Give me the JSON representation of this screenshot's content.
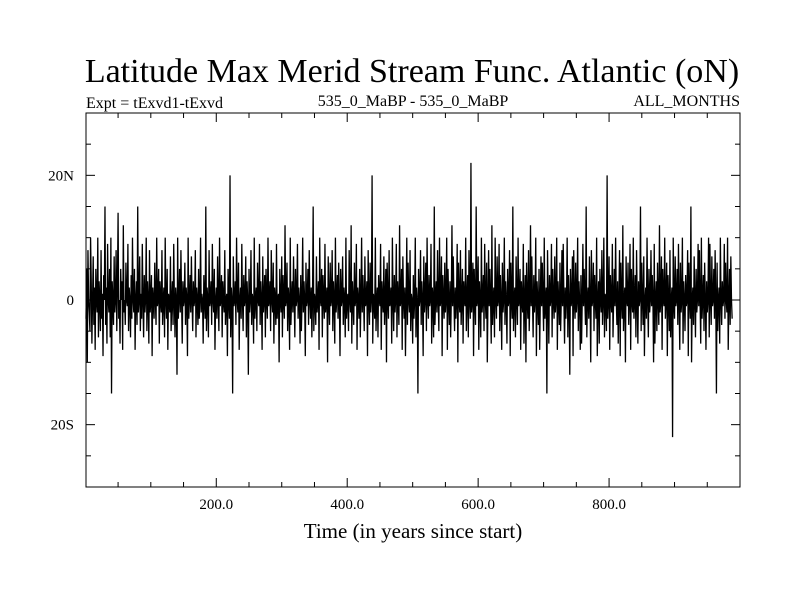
{
  "chart_data": {
    "type": "line",
    "title": "Latitude Max Merid Stream Func. Atlantic (oN)",
    "subtitle_left": "Expt = tExvd1-tExvd",
    "subtitle_center": "535_0_MaBP - 535_0_MaBP",
    "subtitle_right": "ALL_MONTHS",
    "xlabel": "Time (in years since start)",
    "ylabel": "",
    "xlim": [
      1,
      1000
    ],
    "ylim": [
      -30,
      30
    ],
    "x_ticks": [
      {
        "value": 200,
        "label": "200.0"
      },
      {
        "value": 400,
        "label": "400.0"
      },
      {
        "value": 600,
        "label": "600.0"
      },
      {
        "value": 800,
        "label": "800.0"
      }
    ],
    "y_ticks": [
      {
        "value": 20,
        "label": "20N"
      },
      {
        "value": 0,
        "label": "0"
      },
      {
        "value": -20,
        "label": "20S"
      }
    ],
    "x_minor_step": 50,
    "y_minor_step": 5,
    "series": [
      {
        "name": "Latitude Max Merid Stream Func.",
        "color": "#000000",
        "x_start": 1,
        "x_step": 1,
        "values": [
          -3,
          5,
          -10,
          8,
          0,
          -2,
          -5,
          10,
          3,
          -7,
          0,
          7,
          -4,
          2,
          -8,
          5,
          0,
          -2,
          10,
          -6,
          3,
          0,
          -5,
          8,
          -3,
          1,
          -9,
          4,
          0,
          15,
          -4,
          2,
          -7,
          9,
          0,
          -2,
          5,
          -6,
          10,
          -15,
          3,
          0,
          -4,
          7,
          -2,
          0,
          8,
          -5,
          2,
          14,
          -3,
          0,
          -7,
          5,
          0,
          3,
          -8,
          12,
          -2,
          0,
          -4,
          6,
          0,
          -1,
          9,
          -5,
          2,
          0,
          -6,
          4,
          -3,
          10,
          0,
          -2,
          5,
          -8,
          0,
          3,
          -4,
          15,
          -2,
          0,
          7,
          -5,
          1,
          -3,
          9,
          0,
          -6,
          4,
          -2,
          0,
          10,
          -5,
          3,
          0,
          -7,
          8,
          -2,
          0,
          4,
          -9,
          2,
          0,
          -3,
          6,
          0,
          -4,
          10,
          -1,
          0,
          5,
          -7,
          3,
          0,
          -2,
          8,
          -4,
          0,
          2,
          -6,
          10,
          0,
          -3,
          5,
          -8,
          1,
          0,
          -2,
          7,
          -5,
          0,
          3,
          -4,
          9,
          0,
          -6,
          2,
          0,
          -12,
          10,
          -3,
          0,
          5,
          -2,
          8,
          0,
          -7,
          3,
          -1,
          0,
          6,
          -4,
          2,
          0,
          -9,
          10,
          -3,
          0,
          4,
          -2,
          7,
          0,
          -5,
          3,
          -1,
          0,
          8,
          -6,
          2,
          0,
          -4,
          5,
          -3,
          0,
          10,
          -2,
          1,
          0,
          -7,
          4,
          0,
          -3,
          15,
          -5,
          2,
          0,
          -6,
          8,
          -1,
          0,
          3,
          -4,
          9,
          0,
          -2,
          5,
          -8,
          0,
          2,
          -3,
          7,
          0,
          -5,
          10,
          -1,
          0,
          4,
          -6,
          3,
          0,
          -2,
          8,
          -4,
          0,
          1,
          -9,
          5,
          0,
          -3,
          20,
          -6,
          2,
          0,
          -15,
          7,
          -1,
          0,
          3,
          -4,
          10,
          0,
          -2,
          6,
          -8,
          0,
          2,
          -3,
          9,
          0,
          -5,
          4,
          -1,
          0,
          7,
          -6,
          3,
          0,
          -12,
          5,
          -2,
          0,
          8,
          -4,
          1,
          0,
          -7,
          10,
          -3,
          0,
          2,
          -5,
          6,
          0,
          -1,
          9,
          -4,
          3,
          0,
          -8,
          7,
          -2,
          0,
          4,
          -6,
          5,
          0,
          -3,
          10,
          -1,
          0,
          3,
          -5,
          8,
          0,
          -2,
          6,
          -7,
          2,
          0,
          -4,
          9,
          -3,
          0,
          1,
          -10,
          5,
          0,
          -2,
          7,
          -6,
          4,
          0,
          -3,
          12,
          -1,
          0,
          6,
          -5,
          2,
          0,
          -8,
          10,
          -4,
          0,
          3,
          -2,
          7,
          0,
          -6,
          5,
          -1,
          0,
          9,
          -3,
          2,
          0,
          -7,
          4,
          -5,
          0,
          10,
          -2,
          3,
          0,
          -9,
          6,
          -1,
          0,
          5,
          -4,
          8,
          0,
          -3,
          2,
          -6,
          0,
          15,
          -5,
          1,
          0,
          -4,
          7,
          -2,
          0,
          3,
          -8,
          10,
          0,
          -1,
          5,
          -6,
          4,
          0,
          -3,
          9,
          -2,
          0,
          2,
          -10,
          7,
          0,
          -4,
          6,
          -1,
          0,
          8,
          -5,
          3,
          0,
          -7,
          10,
          -2,
          0,
          4,
          -3,
          6,
          0,
          -9,
          5,
          -1,
          0,
          7,
          -4,
          2,
          0,
          -6,
          10,
          -3,
          0,
          1,
          -5,
          8,
          0,
          -2,
          12,
          -7,
          3,
          0,
          -4,
          6,
          -1,
          0,
          9,
          -8,
          2,
          0,
          -3,
          5,
          -6,
          0,
          10,
          -2,
          4,
          0,
          -5,
          7,
          -1,
          0,
          3,
          -9,
          8,
          0,
          -4,
          6,
          -2,
          0,
          20,
          -7,
          1,
          0,
          -3,
          10,
          -5,
          0,
          2,
          -6,
          4,
          0,
          -1,
          9,
          -8,
          3,
          0,
          -2,
          7,
          -4,
          0,
          5,
          -10,
          6,
          0,
          -3,
          8,
          -1,
          0,
          2,
          -7,
          10,
          0,
          -5,
          4,
          -2,
          0,
          9,
          -6,
          3,
          0,
          -4,
          12,
          -1,
          0,
          5,
          -8,
          7,
          0,
          -3,
          2,
          -9,
          0,
          10,
          -4,
          6,
          0,
          -2,
          8,
          -5,
          1,
          0,
          -7,
          4,
          -3,
          0,
          10,
          -6,
          2,
          0,
          -15,
          5,
          -1,
          0,
          8,
          -4,
          3,
          0,
          -9,
          7,
          -2,
          0,
          6,
          -5,
          10,
          0,
          -3,
          4,
          -1,
          0,
          9,
          -7,
          2,
          0,
          -6,
          15,
          -4,
          0,
          3,
          -2,
          8,
          0,
          -5,
          10,
          -1,
          0,
          7,
          -9,
          4,
          0,
          -3,
          6,
          -2,
          0,
          10,
          -8,
          5,
          0,
          -4,
          3,
          -6,
          0,
          12,
          -1,
          7,
          0,
          -5,
          2,
          -3,
          0,
          9,
          -10,
          6,
          0,
          -2,
          8,
          -4,
          0,
          5,
          -7,
          3,
          0,
          -1,
          10,
          -5,
          0,
          4,
          -6,
          8,
          0,
          -3,
          22,
          -2,
          0,
          6,
          -9,
          5,
          0,
          -4,
          15,
          -1,
          0,
          7,
          -8,
          3,
          0,
          -6,
          10,
          -2,
          0,
          4,
          -5,
          9,
          0,
          -3,
          6,
          -10,
          0,
          8,
          -1,
          5,
          0,
          -7,
          12,
          -4,
          0,
          2,
          -6,
          10,
          0,
          -3,
          7,
          -1,
          0,
          9,
          -5,
          4,
          0,
          -8,
          6,
          -2,
          0,
          10,
          -4,
          3,
          0,
          -7,
          5,
          -1,
          0,
          8,
          -9,
          6,
          0,
          -3,
          15,
          -5,
          0,
          2,
          -6,
          7,
          0,
          -4,
          10,
          -1,
          0,
          5,
          -8,
          3,
          0,
          -2,
          9,
          -7,
          0,
          4,
          -10,
          6,
          0,
          -3,
          8,
          -5,
          0,
          12,
          -1,
          7,
          0,
          -6,
          4,
          -2,
          0,
          10,
          -9,
          3,
          0,
          -4,
          5,
          -8,
          0,
          7,
          -1,
          6,
          0,
          -5,
          10,
          -3,
          0,
          2,
          -15,
          8,
          0,
          -7,
          4,
          -1,
          0,
          9,
          -6,
          5,
          0,
          -3,
          7,
          -2,
          0,
          10,
          -8,
          3,
          0,
          -4,
          6,
          -5,
          0,
          8,
          -1,
          9,
          0,
          -7,
          2,
          -3,
          0,
          10,
          -6,
          4,
          0,
          -12,
          5,
          -1,
          0,
          7,
          -9,
          8,
          0,
          -3,
          6,
          -2,
          0,
          10,
          -5,
          3,
          0,
          -8,
          4,
          -7,
          0,
          9,
          -1,
          5,
          0,
          -4,
          15,
          -6,
          0,
          2,
          -3,
          7,
          0,
          -10,
          8,
          -1,
          0,
          6,
          -5,
          4,
          0,
          -3,
          10,
          -9,
          0,
          3,
          -7,
          5,
          0,
          -2,
          8,
          -4,
          0,
          10,
          -6,
          1,
          0,
          -5,
          20,
          -3,
          0,
          7,
          -8,
          4,
          0,
          -2,
          9,
          -6,
          0,
          5,
          -1,
          10,
          0,
          -4,
          3,
          -7,
          0,
          8,
          -9,
          6,
          0,
          -3,
          12,
          -5,
          0,
          2,
          -10,
          7,
          0,
          -1,
          6,
          -4,
          0,
          9,
          -8,
          5,
          0,
          -2,
          10,
          -3,
          0,
          4,
          -6,
          8,
          0,
          -7,
          3,
          -1,
          0,
          15,
          -5,
          6,
          0,
          -4,
          7,
          -9,
          0,
          2,
          -3,
          10,
          0,
          -6,
          5,
          -2,
          0,
          8,
          -1,
          4,
          0,
          -10,
          9,
          -7,
          0,
          3,
          -5,
          6,
          0,
          -4,
          12,
          -2,
          0,
          7,
          -8,
          5,
          0,
          -1,
          10,
          -3,
          0,
          6,
          -9,
          4,
          0,
          -5,
          8,
          -6,
          0,
          2,
          -22,
          10,
          0,
          -3,
          7,
          -1,
          0,
          5,
          -4,
          9,
          0,
          -8,
          6,
          -2,
          0,
          10,
          -7,
          3,
          0,
          -5,
          4,
          -1,
          0,
          8,
          -9,
          6,
          0,
          -3,
          15,
          -10,
          0,
          2,
          -4,
          7,
          0,
          -6,
          5,
          -2,
          0,
          9,
          -1,
          8,
          0,
          -7,
          10,
          -3,
          0,
          4,
          -5,
          6,
          0,
          -8,
          3,
          -2,
          0,
          10,
          -6,
          9,
          0,
          -4,
          7,
          -1,
          0,
          5,
          -3,
          8,
          0,
          -15,
          6,
          -5,
          0,
          2,
          -7,
          10,
          0,
          -4,
          3,
          -1,
          0,
          9,
          -3,
          6,
          0,
          -2,
          10,
          -8,
          0,
          5,
          -4,
          7,
          0,
          -3
        ]
      }
    ]
  }
}
